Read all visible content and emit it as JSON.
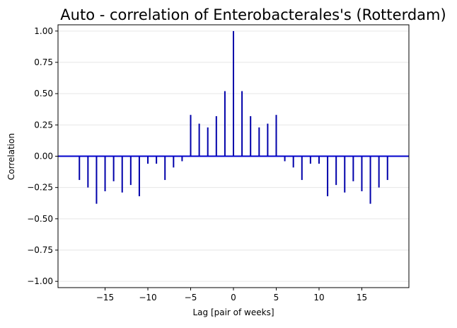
{
  "chart_data": {
    "type": "bar",
    "title": "Auto - correlation of Enterobacterales's (Rotterdam)",
    "xlabel": "Lag [pair of weeks]",
    "ylabel": "Correlation",
    "xlim": [
      -20.5,
      20.5
    ],
    "ylim": [
      -1.05,
      1.05
    ],
    "xticks": [
      -15,
      -10,
      -5,
      0,
      5,
      10,
      15
    ],
    "yticks": [
      -1.0,
      -0.75,
      -0.5,
      -0.25,
      0.0,
      0.25,
      0.5,
      0.75,
      1.0
    ],
    "xtick_labels": [
      "−15",
      "−10",
      "−5",
      "0",
      "5",
      "10",
      "15"
    ],
    "ytick_labels": [
      "−1.00",
      "−0.75",
      "−0.50",
      "−0.25",
      "0.00",
      "0.25",
      "0.50",
      "0.75",
      "1.00"
    ],
    "grid": "y",
    "colors": {
      "bars": "#0000aa",
      "zero_line": "#0000cc",
      "grid": "#e6e6e6"
    },
    "lags": [
      -18,
      -17,
      -16,
      -15,
      -14,
      -13,
      -12,
      -11,
      -10,
      -9,
      -8,
      -7,
      -6,
      -5,
      -4,
      -3,
      -2,
      -1,
      0,
      1,
      2,
      3,
      4,
      5,
      6,
      7,
      8,
      9,
      10,
      11,
      12,
      13,
      14,
      15,
      16,
      17,
      18
    ],
    "values": [
      -0.19,
      -0.25,
      -0.38,
      -0.28,
      -0.2,
      -0.29,
      -0.23,
      -0.32,
      -0.06,
      -0.06,
      -0.19,
      -0.09,
      -0.04,
      0.33,
      0.26,
      0.23,
      0.32,
      0.52,
      1.0,
      0.52,
      0.32,
      0.23,
      0.26,
      0.33,
      -0.04,
      -0.09,
      -0.19,
      -0.06,
      -0.06,
      -0.32,
      -0.23,
      -0.29,
      -0.2,
      -0.28,
      -0.38,
      -0.25,
      -0.19
    ]
  }
}
